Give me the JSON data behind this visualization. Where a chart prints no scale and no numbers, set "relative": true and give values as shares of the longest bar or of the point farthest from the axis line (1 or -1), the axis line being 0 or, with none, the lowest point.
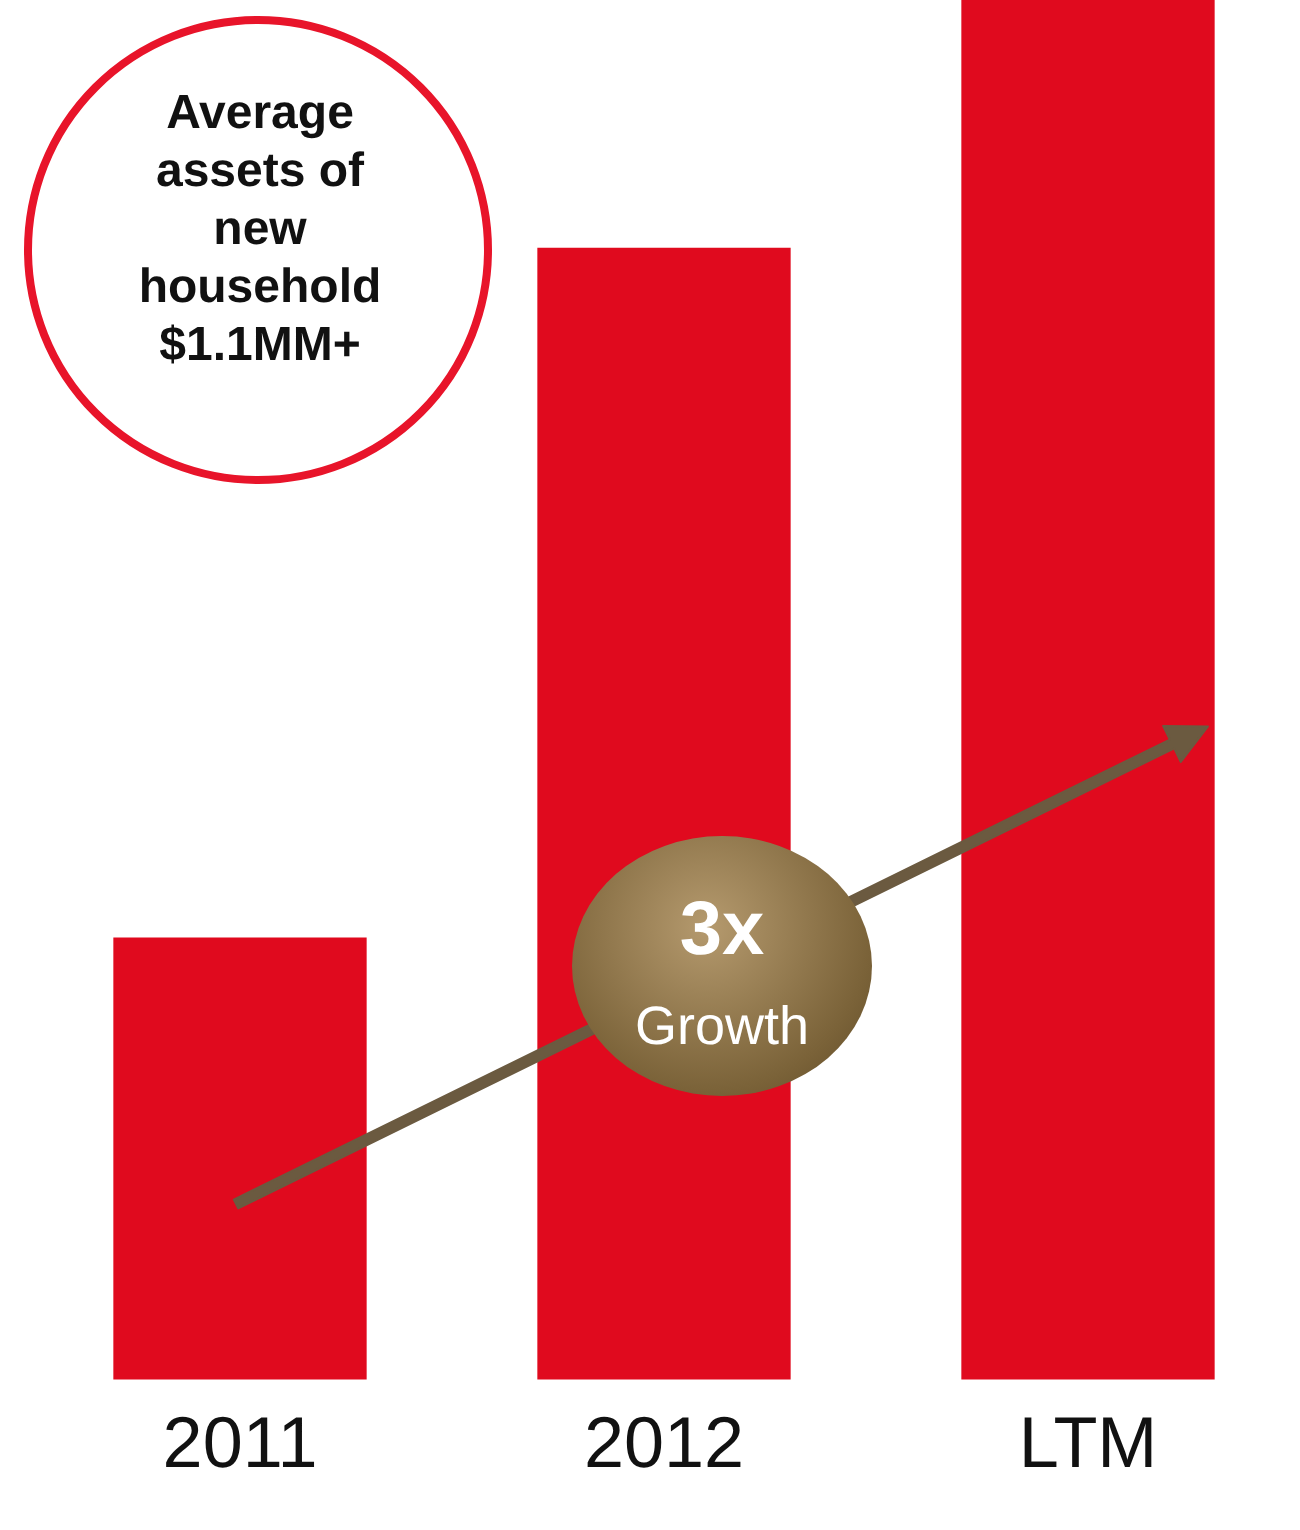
{
  "chart_data": {
    "type": "bar",
    "relative": true,
    "categories": [
      "2011",
      "2012",
      "LTM"
    ],
    "values": [
      0.32,
      0.82,
      1
    ],
    "color": "#e00a1e",
    "annotations": [
      "Average assets of new household $1.1MM+",
      "3x",
      "Growth"
    ],
    "grid": false,
    "legend": false
  }
}
